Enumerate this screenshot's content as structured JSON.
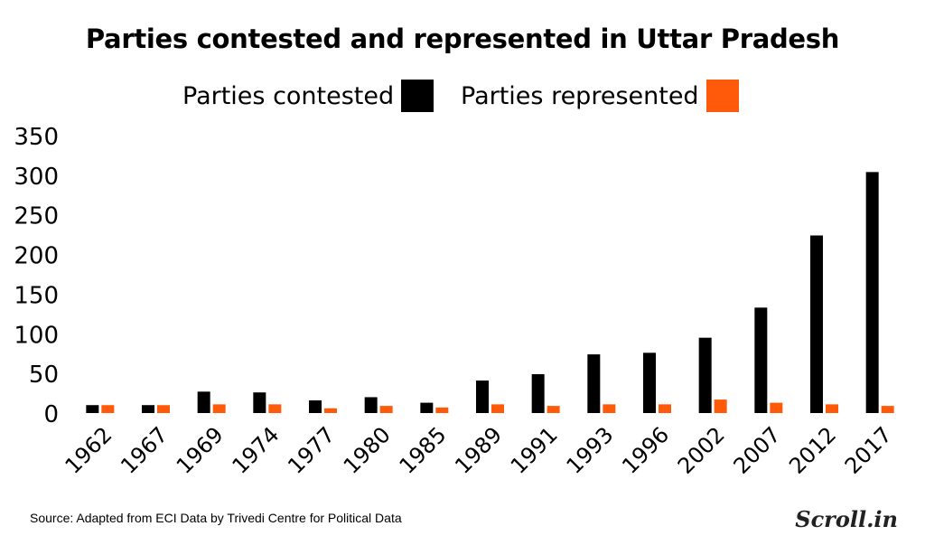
{
  "chart_data": {
    "type": "bar",
    "title": "Parties contested and represented in Uttar Pradesh",
    "categories": [
      "1962",
      "1967",
      "1969",
      "1974",
      "1977",
      "1980",
      "1985",
      "1989",
      "1991",
      "1993",
      "1996",
      "2002",
      "2007",
      "2012",
      "2017"
    ],
    "series": [
      {
        "name": "Parties contested",
        "color": "#000000",
        "values": [
          10,
          10,
          27,
          26,
          16,
          20,
          13,
          41,
          49,
          74,
          76,
          95,
          133,
          224,
          304
        ]
      },
      {
        "name": "Parties represented",
        "color": "#ff5a0a",
        "values": [
          10,
          10,
          11,
          11,
          6,
          9,
          7,
          11,
          9,
          11,
          11,
          17,
          13,
          11,
          9
        ]
      }
    ],
    "ylim": [
      0,
      350
    ],
    "yticks": [
      0,
      50,
      100,
      150,
      200,
      250,
      300,
      350
    ],
    "grid": false,
    "legend_position": "top"
  },
  "source": "Source: Adapted from ECI Data by Trivedi Centre for Political Data",
  "brand": "Scroll.in"
}
